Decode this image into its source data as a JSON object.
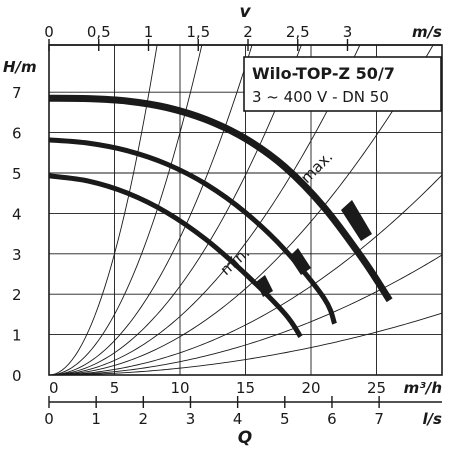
{
  "chart_data": {
    "type": "line",
    "title": "Wilo-TOP-Z 50/7",
    "subtitle": "3 ~ 400 V - DN 50",
    "x_axis": {
      "label": "Q",
      "unit": "m³/h",
      "range": [
        0,
        30
      ],
      "ticks": [
        "0",
        "5",
        "10",
        "15",
        "20",
        "25"
      ]
    },
    "x_axis_secondary_bottom": {
      "unit": "l/s",
      "ticks": [
        "0",
        "1",
        "2",
        "3",
        "4",
        "5",
        "6",
        "7"
      ]
    },
    "x_axis_secondary_top": {
      "label": "v",
      "unit": "m/s",
      "ticks": [
        "0",
        "0,5",
        "1",
        "1,5",
        "2",
        "2,5",
        "3"
      ]
    },
    "y_axis": {
      "label": "H/m",
      "range": [
        0,
        8
      ],
      "ticks": [
        "0",
        "1",
        "2",
        "3",
        "4",
        "5",
        "6",
        "7"
      ]
    },
    "grid": true,
    "series": [
      {
        "name": "max.",
        "x": [
          0,
          3,
          6,
          9,
          12,
          15,
          18,
          21,
          24,
          26
        ],
        "y": [
          6.85,
          6.84,
          6.78,
          6.62,
          6.32,
          5.85,
          5.15,
          4.15,
          2.85,
          1.85
        ]
      },
      {
        "name": "",
        "x": [
          0,
          3,
          6,
          9,
          12,
          15,
          18,
          21,
          21.8
        ],
        "y": [
          5.82,
          5.74,
          5.55,
          5.22,
          4.72,
          4.02,
          3.1,
          1.9,
          1.27
        ]
      },
      {
        "name": "min.",
        "x": [
          0,
          3,
          6,
          9,
          12,
          15,
          18,
          19.2
        ],
        "y": [
          4.93,
          4.8,
          4.5,
          4.02,
          3.35,
          2.5,
          1.52,
          0.95
        ]
      }
    ],
    "system_curves": [
      {
        "k": 0.12
      },
      {
        "k": 0.06
      },
      {
        "k": 0.034
      },
      {
        "k": 0.022
      },
      {
        "k": 0.0145
      },
      {
        "k": 0.0095
      },
      {
        "k": 0.0055
      },
      {
        "k": 0.0033
      },
      {
        "k": 0.0017
      }
    ]
  }
}
